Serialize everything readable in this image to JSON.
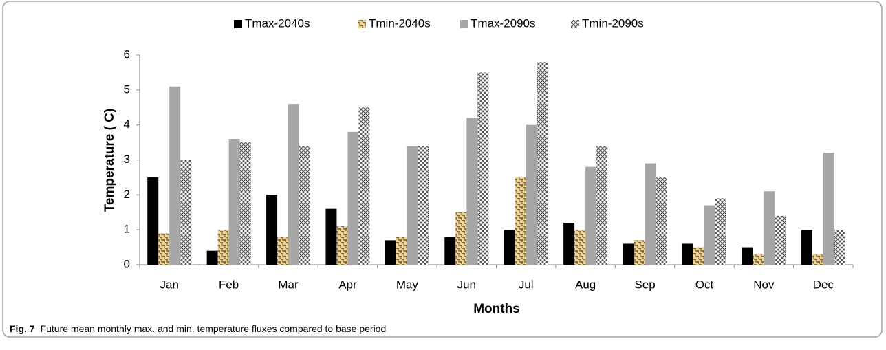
{
  "chart_data": {
    "type": "bar",
    "caption_label": "Fig. 7",
    "caption": "Future mean monthly max. and min. temperature fluxes compared to base period",
    "xlabel": "Months",
    "ylabel": "Temperature ( C)",
    "categories": [
      "Jan",
      "Feb",
      "Mar",
      "Apr",
      "May",
      "Jun",
      "Jul",
      "Aug",
      "Sep",
      "Oct",
      "Nov",
      "Dec"
    ],
    "series": [
      {
        "name": "Tmax-2040s",
        "color": "#000000",
        "pattern": "solid",
        "values": [
          2.5,
          0.4,
          2.0,
          1.6,
          0.7,
          0.8,
          1.0,
          1.2,
          0.6,
          0.6,
          0.5,
          1.0
        ]
      },
      {
        "name": "Tmin-2040s",
        "color": "#c9a464",
        "pattern": "weave",
        "values": [
          0.9,
          1.0,
          0.8,
          1.1,
          0.8,
          1.5,
          2.5,
          1.0,
          0.7,
          0.5,
          0.3,
          0.3
        ]
      },
      {
        "name": "Tmax-2090s",
        "color": "#a6a6a6",
        "pattern": "solid",
        "values": [
          5.1,
          3.6,
          4.6,
          3.8,
          3.4,
          4.2,
          4.0,
          2.8,
          2.9,
          1.7,
          2.1,
          3.2
        ]
      },
      {
        "name": "Tmin-2090s",
        "color": "#555555",
        "pattern": "cross",
        "values": [
          3.0,
          3.5,
          3.4,
          4.5,
          3.4,
          5.5,
          5.8,
          3.4,
          2.5,
          1.9,
          1.4,
          1.0
        ]
      }
    ],
    "ylim": [
      0,
      6
    ],
    "yticks": [
      0,
      1,
      2,
      3,
      4,
      5,
      6
    ],
    "grid": false,
    "legend": "top"
  }
}
